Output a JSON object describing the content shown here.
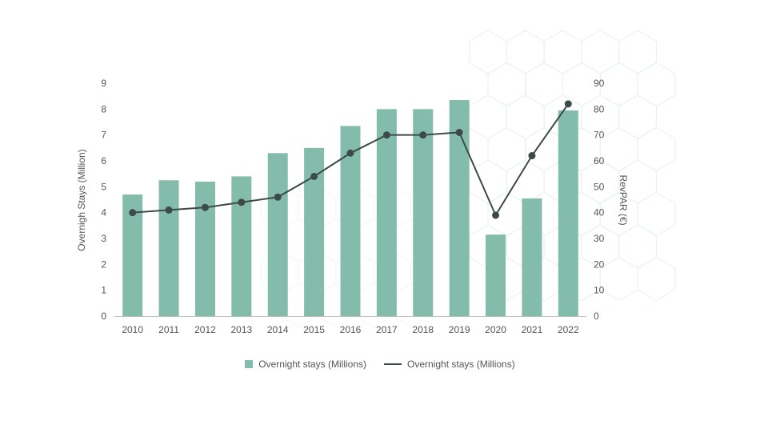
{
  "chart_data": {
    "type": "bar",
    "categories": [
      "2010",
      "2011",
      "2012",
      "2013",
      "2014",
      "2015",
      "2016",
      "2017",
      "2018",
      "2019",
      "2020",
      "2021",
      "2022"
    ],
    "series": [
      {
        "name": "Overnight stays (Millions)",
        "type": "bar",
        "axis": "left",
        "values": [
          4.7,
          5.25,
          5.2,
          5.4,
          6.3,
          6.5,
          7.35,
          8.0,
          8.0,
          8.35,
          3.15,
          4.55,
          7.95
        ]
      },
      {
        "name": "Overnight stays (Millions)",
        "type": "line",
        "axis": "right",
        "values": [
          40,
          41,
          42,
          44,
          46,
          54,
          63,
          70,
          70,
          71,
          39,
          62,
          82
        ]
      }
    ],
    "ylabel": "Overnigh Stays (Million)",
    "y2label": "RevPAR (€)",
    "ylim": [
      0,
      9
    ],
    "y2lim": [
      0,
      90
    ],
    "yticks": [
      "0",
      "1",
      "2",
      "3",
      "4",
      "5",
      "6",
      "7",
      "8",
      "9"
    ],
    "y2ticks": [
      "0",
      "10",
      "20",
      "30",
      "40",
      "50",
      "60",
      "70",
      "80",
      "90"
    ],
    "grid": false,
    "legend_position": "bottom-center",
    "colors": {
      "bar": "#84bcac",
      "line": "#3d4b48",
      "axis": "#bfbfbf",
      "hex_pattern": "#e4f1ec"
    }
  }
}
